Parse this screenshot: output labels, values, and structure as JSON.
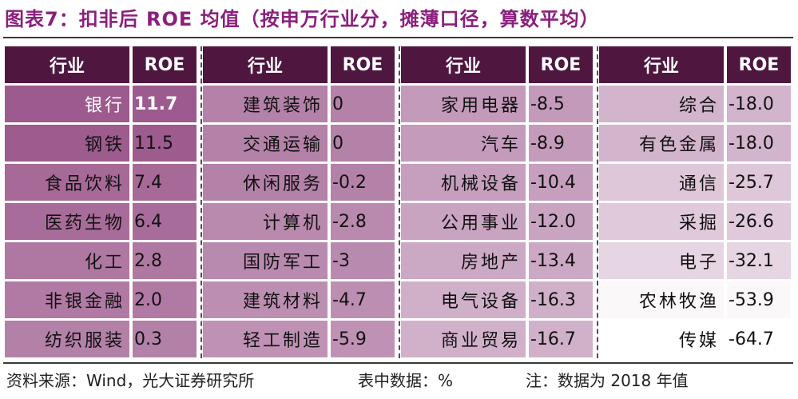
{
  "title": "图表7：扣非后 ROE 均值（按申万行业分，摊薄口径，算数平均）",
  "header": {
    "industry": "行业",
    "roe": "ROE"
  },
  "footer": {
    "source": "资料来源：Wind，光大证券研究所",
    "unit": "表中数据：%",
    "note": "注：数据为 2018 年值"
  },
  "colors": {
    "title": "#8b1f7d",
    "header_bg": "#4f1740",
    "heat_high": "#9d5a8e",
    "heat_low": "#ffffff"
  },
  "chart_data": {
    "type": "table",
    "columns": [
      "行业",
      "ROE",
      "行业",
      "ROE",
      "行业",
      "ROE",
      "行业",
      "ROE"
    ],
    "groups": [
      {
        "rows": [
          {
            "industry": "银行",
            "roe": "11.7"
          },
          {
            "industry": "钢铁",
            "roe": "11.5"
          },
          {
            "industry": "食品饮料",
            "roe": "7.4"
          },
          {
            "industry": "医药生物",
            "roe": "6.4"
          },
          {
            "industry": "化工",
            "roe": "2.8"
          },
          {
            "industry": "非银金融",
            "roe": "2.0"
          },
          {
            "industry": "纺织服装",
            "roe": "0.3"
          }
        ]
      },
      {
        "rows": [
          {
            "industry": "建筑装饰",
            "roe": "0"
          },
          {
            "industry": "交通运输",
            "roe": "0"
          },
          {
            "industry": "休闲服务",
            "roe": "-0.2"
          },
          {
            "industry": "计算机",
            "roe": "-2.8"
          },
          {
            "industry": "国防军工",
            "roe": "-3"
          },
          {
            "industry": "建筑材料",
            "roe": "-4.7"
          },
          {
            "industry": "轻工制造",
            "roe": "-5.9"
          }
        ]
      },
      {
        "rows": [
          {
            "industry": "家用电器",
            "roe": "-8.5"
          },
          {
            "industry": "汽车",
            "roe": "-8.9"
          },
          {
            "industry": "机械设备",
            "roe": "-10.4"
          },
          {
            "industry": "公用事业",
            "roe": "-12.0"
          },
          {
            "industry": "房地产",
            "roe": "-13.4"
          },
          {
            "industry": "电气设备",
            "roe": "-16.3"
          },
          {
            "industry": "商业贸易",
            "roe": "-16.7"
          }
        ]
      },
      {
        "rows": [
          {
            "industry": "综合",
            "roe": "-18.0"
          },
          {
            "industry": "有色金属",
            "roe": "-18.0"
          },
          {
            "industry": "通信",
            "roe": "-25.7"
          },
          {
            "industry": "采掘",
            "roe": "-26.6"
          },
          {
            "industry": "电子",
            "roe": "-32.1"
          },
          {
            "industry": "农林牧渔",
            "roe": "-53.9"
          },
          {
            "industry": "传媒",
            "roe": "-64.7"
          }
        ]
      }
    ]
  }
}
